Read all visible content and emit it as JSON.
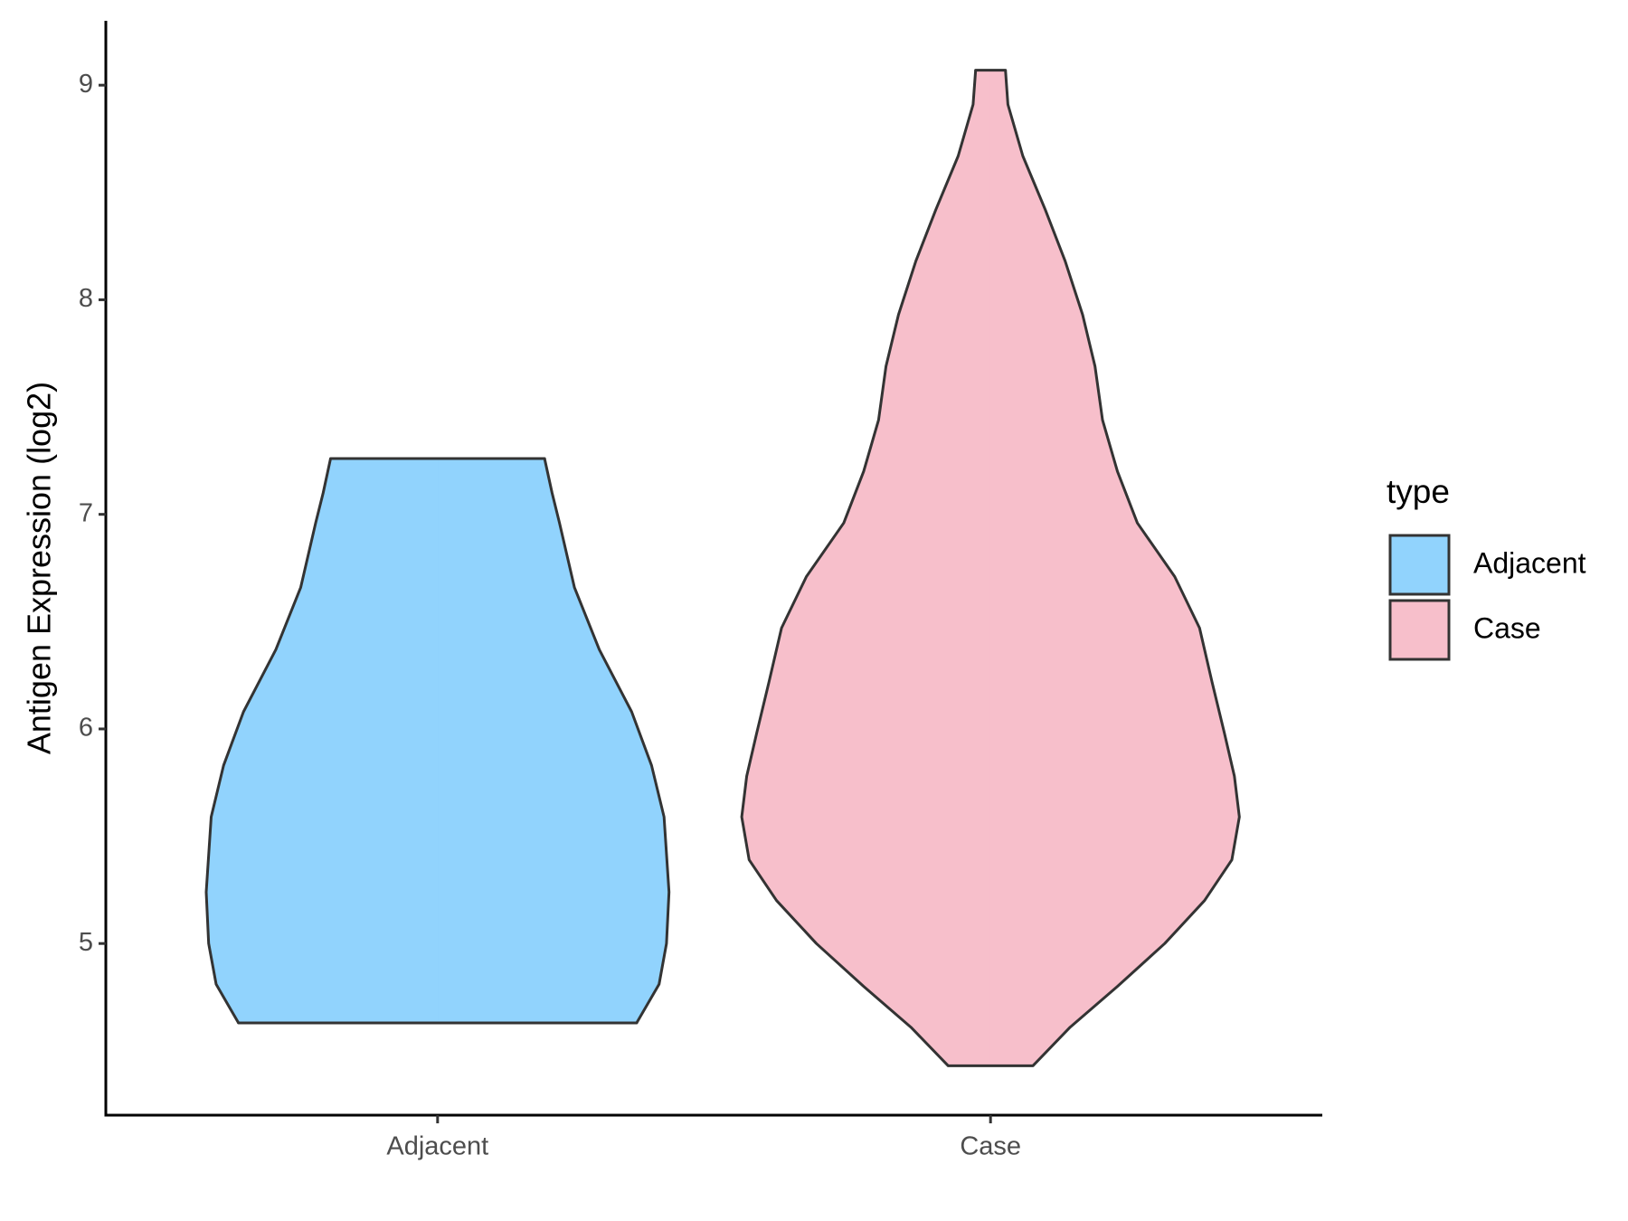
{
  "chart_data": {
    "type": "violin",
    "y_label": "Antigen Expression (log2)",
    "categories": [
      "Adjacent",
      "Case"
    ],
    "ylim": [
      4.2,
      9.3
    ],
    "yticks": [
      5,
      6,
      7,
      8,
      9
    ],
    "legend_title": "type",
    "legend_position": "right",
    "series": [
      {
        "name": "Adjacent",
        "color": "#91d3fd",
        "y": [
          4.63,
          4.81,
          5.0,
          5.24,
          5.59,
          5.83,
          6.08,
          6.37,
          6.66,
          6.96,
          7.1,
          7.26
        ],
        "density": [
          0.8,
          0.89,
          0.92,
          0.93,
          0.91,
          0.86,
          0.78,
          0.65,
          0.55,
          0.49,
          0.46,
          0.43
        ]
      },
      {
        "name": "Case",
        "color": "#f7bfcb",
        "y": [
          4.43,
          4.61,
          4.8,
          5.0,
          5.2,
          5.39,
          5.59,
          5.78,
          5.98,
          6.22,
          6.47,
          6.71,
          6.96,
          7.2,
          7.44,
          7.69,
          7.93,
          8.18,
          8.42,
          8.67,
          8.91,
          9.07
        ],
        "density": [
          0.17,
          0.32,
          0.51,
          0.7,
          0.86,
          0.97,
          1.0,
          0.98,
          0.94,
          0.89,
          0.84,
          0.74,
          0.59,
          0.51,
          0.45,
          0.42,
          0.37,
          0.3,
          0.22,
          0.13,
          0.07,
          0.06
        ]
      }
    ]
  }
}
